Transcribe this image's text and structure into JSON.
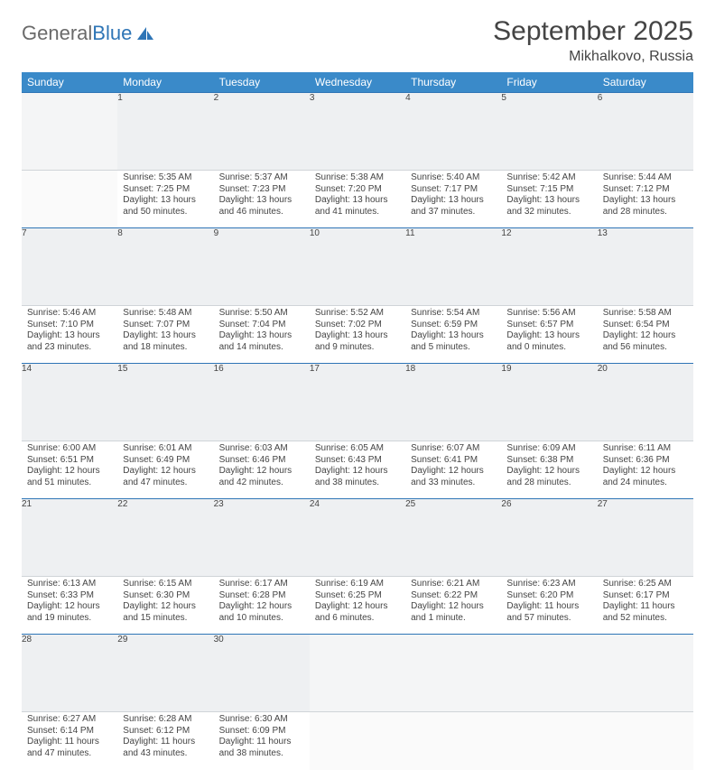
{
  "brand": {
    "part1": "General",
    "part2": "Blue"
  },
  "title": "September 2025",
  "location": "Mikhalkovo, Russia",
  "weekdays": [
    "Sunday",
    "Monday",
    "Tuesday",
    "Wednesday",
    "Thursday",
    "Friday",
    "Saturday"
  ],
  "colors": {
    "header_bg": "#3a8ac9",
    "accent": "#2e75b6",
    "daynum_bg": "#eef0f2",
    "text": "#444444"
  },
  "weeks": [
    [
      null,
      {
        "d": "1",
        "sr": "5:35 AM",
        "ss": "7:25 PM",
        "dl": "13 hours and 50 minutes."
      },
      {
        "d": "2",
        "sr": "5:37 AM",
        "ss": "7:23 PM",
        "dl": "13 hours and 46 minutes."
      },
      {
        "d": "3",
        "sr": "5:38 AM",
        "ss": "7:20 PM",
        "dl": "13 hours and 41 minutes."
      },
      {
        "d": "4",
        "sr": "5:40 AM",
        "ss": "7:17 PM",
        "dl": "13 hours and 37 minutes."
      },
      {
        "d": "5",
        "sr": "5:42 AM",
        "ss": "7:15 PM",
        "dl": "13 hours and 32 minutes."
      },
      {
        "d": "6",
        "sr": "5:44 AM",
        "ss": "7:12 PM",
        "dl": "13 hours and 28 minutes."
      }
    ],
    [
      {
        "d": "7",
        "sr": "5:46 AM",
        "ss": "7:10 PM",
        "dl": "13 hours and 23 minutes."
      },
      {
        "d": "8",
        "sr": "5:48 AM",
        "ss": "7:07 PM",
        "dl": "13 hours and 18 minutes."
      },
      {
        "d": "9",
        "sr": "5:50 AM",
        "ss": "7:04 PM",
        "dl": "13 hours and 14 minutes."
      },
      {
        "d": "10",
        "sr": "5:52 AM",
        "ss": "7:02 PM",
        "dl": "13 hours and 9 minutes."
      },
      {
        "d": "11",
        "sr": "5:54 AM",
        "ss": "6:59 PM",
        "dl": "13 hours and 5 minutes."
      },
      {
        "d": "12",
        "sr": "5:56 AM",
        "ss": "6:57 PM",
        "dl": "13 hours and 0 minutes."
      },
      {
        "d": "13",
        "sr": "5:58 AM",
        "ss": "6:54 PM",
        "dl": "12 hours and 56 minutes."
      }
    ],
    [
      {
        "d": "14",
        "sr": "6:00 AM",
        "ss": "6:51 PM",
        "dl": "12 hours and 51 minutes."
      },
      {
        "d": "15",
        "sr": "6:01 AM",
        "ss": "6:49 PM",
        "dl": "12 hours and 47 minutes."
      },
      {
        "d": "16",
        "sr": "6:03 AM",
        "ss": "6:46 PM",
        "dl": "12 hours and 42 minutes."
      },
      {
        "d": "17",
        "sr": "6:05 AM",
        "ss": "6:43 PM",
        "dl": "12 hours and 38 minutes."
      },
      {
        "d": "18",
        "sr": "6:07 AM",
        "ss": "6:41 PM",
        "dl": "12 hours and 33 minutes."
      },
      {
        "d": "19",
        "sr": "6:09 AM",
        "ss": "6:38 PM",
        "dl": "12 hours and 28 minutes."
      },
      {
        "d": "20",
        "sr": "6:11 AM",
        "ss": "6:36 PM",
        "dl": "12 hours and 24 minutes."
      }
    ],
    [
      {
        "d": "21",
        "sr": "6:13 AM",
        "ss": "6:33 PM",
        "dl": "12 hours and 19 minutes."
      },
      {
        "d": "22",
        "sr": "6:15 AM",
        "ss": "6:30 PM",
        "dl": "12 hours and 15 minutes."
      },
      {
        "d": "23",
        "sr": "6:17 AM",
        "ss": "6:28 PM",
        "dl": "12 hours and 10 minutes."
      },
      {
        "d": "24",
        "sr": "6:19 AM",
        "ss": "6:25 PM",
        "dl": "12 hours and 6 minutes."
      },
      {
        "d": "25",
        "sr": "6:21 AM",
        "ss": "6:22 PM",
        "dl": "12 hours and 1 minute."
      },
      {
        "d": "26",
        "sr": "6:23 AM",
        "ss": "6:20 PM",
        "dl": "11 hours and 57 minutes."
      },
      {
        "d": "27",
        "sr": "6:25 AM",
        "ss": "6:17 PM",
        "dl": "11 hours and 52 minutes."
      }
    ],
    [
      {
        "d": "28",
        "sr": "6:27 AM",
        "ss": "6:14 PM",
        "dl": "11 hours and 47 minutes."
      },
      {
        "d": "29",
        "sr": "6:28 AM",
        "ss": "6:12 PM",
        "dl": "11 hours and 43 minutes."
      },
      {
        "d": "30",
        "sr": "6:30 AM",
        "ss": "6:09 PM",
        "dl": "11 hours and 38 minutes."
      },
      null,
      null,
      null,
      null
    ]
  ],
  "labels": {
    "sunrise": "Sunrise:",
    "sunset": "Sunset:",
    "daylight": "Daylight:"
  }
}
